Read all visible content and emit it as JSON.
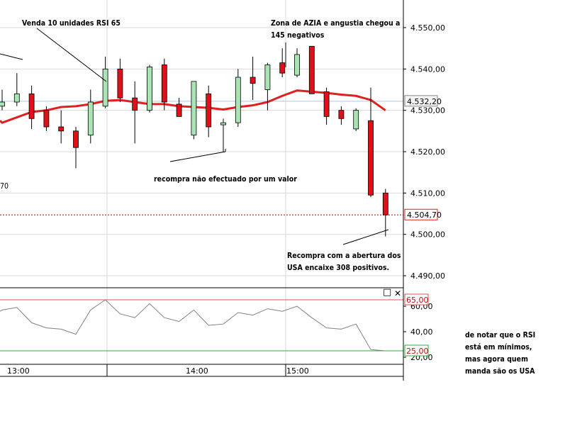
{
  "annotations": {
    "sell": "Venda 10 unidades RSI 65",
    "zone_line1": "Zona de AZIA e angustia chegou a",
    "zone_line2": "145 negativos",
    "rebuy_missed": "recompra não efectuado por um valor",
    "rebuy_line1": "Recompra com a abertura dos",
    "rebuy_line2": "USA encaixe 308 positivos.",
    "note_line1": "de notar que o RSI",
    "note_line2": "está em mínimos,",
    "note_line3": "mas agora quem",
    "note_line4": "manda são os USA",
    "partial_label": "70"
  },
  "panel_controls": {
    "maximize": "□",
    "close": "✕"
  },
  "colors": {
    "up": "#a9e4b5",
    "down": "#e0101a",
    "ma": "#e02020",
    "rsi": "#808080",
    "rsi_high": "#e05050",
    "rsi_low": "#30b030",
    "grid": "#d8d8d8"
  },
  "chart_data": [
    {
      "type": "candlestick",
      "y_axis_ticks": [
        "4.550,00",
        "4.540,00",
        "4.530,00",
        "4.520,00",
        "4.510,00",
        "4.500,00",
        "4.490,00"
      ],
      "ylim": [
        4486,
        4557
      ],
      "last_price": "4.532,20",
      "current_price_label": "4.504,70",
      "current_price": 4504.7,
      "x_tick_labels": [
        "13:00",
        "14:00",
        "15:00"
      ],
      "candles": [
        {
          "o": 4531.0,
          "h": 4535.0,
          "l": 4530.0,
          "c": 4532.0
        },
        {
          "o": 4532.0,
          "h": 4539.0,
          "l": 4531.0,
          "c": 4534.0
        },
        {
          "o": 4534.0,
          "h": 4536.0,
          "l": 4525.5,
          "c": 4528.0
        },
        {
          "o": 4530.0,
          "h": 4531.0,
          "l": 4525.0,
          "c": 4526.0
        },
        {
          "o": 4526.0,
          "h": 4530.0,
          "l": 4522.0,
          "c": 4525.0
        },
        {
          "o": 4525.0,
          "h": 4526.0,
          "l": 4516.0,
          "c": 4521.0
        },
        {
          "o": 4524.0,
          "h": 4535.0,
          "l": 4522.0,
          "c": 4532.0
        },
        {
          "o": 4531.0,
          "h": 4543.0,
          "l": 4530.5,
          "c": 4540.0
        },
        {
          "o": 4540.0,
          "h": 4542.5,
          "l": 4532.0,
          "c": 4533.0
        },
        {
          "o": 4533.0,
          "h": 4537.0,
          "l": 4522.0,
          "c": 4530.0
        },
        {
          "o": 4530.0,
          "h": 4541.0,
          "l": 4529.5,
          "c": 4540.5
        },
        {
          "o": 4541.0,
          "h": 4542.5,
          "l": 4530.0,
          "c": 4532.0
        },
        {
          "o": 4531.5,
          "h": 4533.0,
          "l": 4528.5,
          "c": 4528.5
        },
        {
          "o": 4524.0,
          "h": 4537.0,
          "l": 4523.0,
          "c": 4537.0
        },
        {
          "o": 4534.0,
          "h": 4536.0,
          "l": 4523.5,
          "c": 4526.0
        },
        {
          "o": 4526.5,
          "h": 4528.0,
          "l": 4520.0,
          "c": 4527.0
        },
        {
          "o": 4527.0,
          "h": 4540.0,
          "l": 4526.0,
          "c": 4538.0
        },
        {
          "o": 4538.0,
          "h": 4543.0,
          "l": 4532.5,
          "c": 4536.5
        },
        {
          "o": 4535.0,
          "h": 4541.5,
          "l": 4530.0,
          "c": 4541.0
        },
        {
          "o": 4541.5,
          "h": 4545.0,
          "l": 4538.0,
          "c": 4539.0
        },
        {
          "o": 4538.5,
          "h": 4545.0,
          "l": 4538.0,
          "c": 4543.5
        },
        {
          "o": 4545.5,
          "h": 4545.5,
          "l": 4534.0,
          "c": 4534.0
        },
        {
          "o": 4534.5,
          "h": 4535.5,
          "l": 4526.5,
          "c": 4528.5
        },
        {
          "o": 4530.0,
          "h": 4531.0,
          "l": 4526.5,
          "c": 4528.0
        },
        {
          "o": 4525.5,
          "h": 4530.5,
          "l": 4525.0,
          "c": 4530.0
        },
        {
          "o": 4527.5,
          "h": 4535.5,
          "l": 4509.0,
          "c": 4509.5
        },
        {
          "o": 4510.0,
          "h": 4511.0,
          "l": 4499.5,
          "c": 4504.7
        }
      ],
      "moving_average": [
        4527.0,
        4528.3,
        4529.6,
        4530.0,
        4530.8,
        4531.0,
        4531.5,
        4532.3,
        4532.5,
        4532.0,
        4531.5,
        4531.5,
        4531.0,
        4530.8,
        4530.6,
        4530.2,
        4530.8,
        4531.2,
        4532.0,
        4533.5,
        4534.8,
        4534.5,
        4534.2,
        4533.8,
        4533.5,
        4532.5,
        4530.0
      ]
    },
    {
      "type": "line",
      "indicator": "RSI",
      "y_axis_ticks": [
        "60,00",
        "40,00",
        "20,00"
      ],
      "ylim": [
        16,
        72
      ],
      "overbought": 65,
      "oversold": 25,
      "overbought_label": "65,00",
      "oversold_label": "25,00",
      "values": [
        57,
        59,
        47,
        43,
        42,
        38,
        57,
        65,
        54,
        51,
        62,
        51,
        48,
        57,
        45,
        46,
        55,
        53,
        58,
        56,
        60,
        51,
        43,
        42,
        46,
        26,
        25
      ]
    }
  ]
}
